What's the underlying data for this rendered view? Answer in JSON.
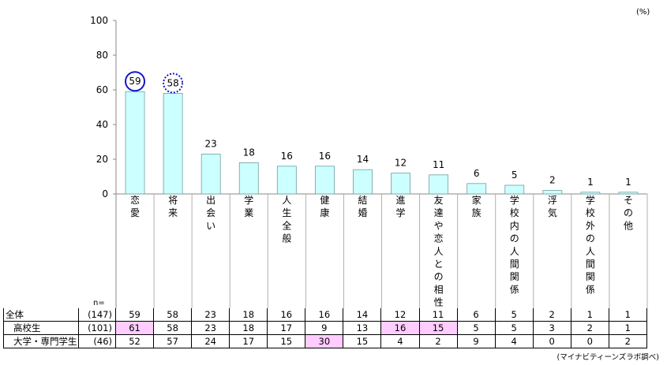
{
  "unit_label": "(%)",
  "n_label": "n=",
  "source": "(マイナビティーンズラボ調べ)",
  "colors": {
    "bar_fill": "#ccffff",
    "bar_stroke": "#6ca0a0",
    "circle_solid": "#1515c8",
    "circle_dotted": "#1515c8",
    "highlight": "#ffccff"
  },
  "chart_data": {
    "type": "bar",
    "categories": [
      "恋愛",
      "将来",
      "出会い",
      "学業",
      "人生全般",
      "健康",
      "結婚",
      "進学",
      "友達や恋人との相性",
      "家族",
      "学校内の人間関係",
      "浮気",
      "学校外の人間関係",
      "その他"
    ],
    "values": [
      59,
      58,
      23,
      18,
      16,
      16,
      14,
      12,
      11,
      6,
      5,
      2,
      1,
      1
    ],
    "ylim": [
      0,
      100
    ],
    "yticks": [
      0,
      20,
      40,
      60,
      80,
      100
    ],
    "grid": false,
    "annotations": [
      {
        "category": "恋愛",
        "style": "solid circle"
      },
      {
        "category": "将来",
        "style": "dotted circle"
      }
    ]
  },
  "table": {
    "rows": [
      {
        "label": "全体",
        "n": "(147)",
        "values": [
          59,
          58,
          23,
          18,
          16,
          16,
          14,
          12,
          11,
          6,
          5,
          2,
          1,
          1
        ],
        "highlight": []
      },
      {
        "label": "高校生",
        "n": "(101)",
        "values": [
          61,
          58,
          23,
          18,
          17,
          9,
          13,
          16,
          15,
          5,
          5,
          3,
          2,
          1
        ],
        "highlight": [
          0,
          7,
          8
        ]
      },
      {
        "label": "大学・専門学生",
        "n": "(46)",
        "values": [
          52,
          57,
          24,
          17,
          15,
          30,
          15,
          4,
          2,
          9,
          4,
          0,
          0,
          2
        ],
        "highlight": [
          5
        ]
      }
    ]
  }
}
